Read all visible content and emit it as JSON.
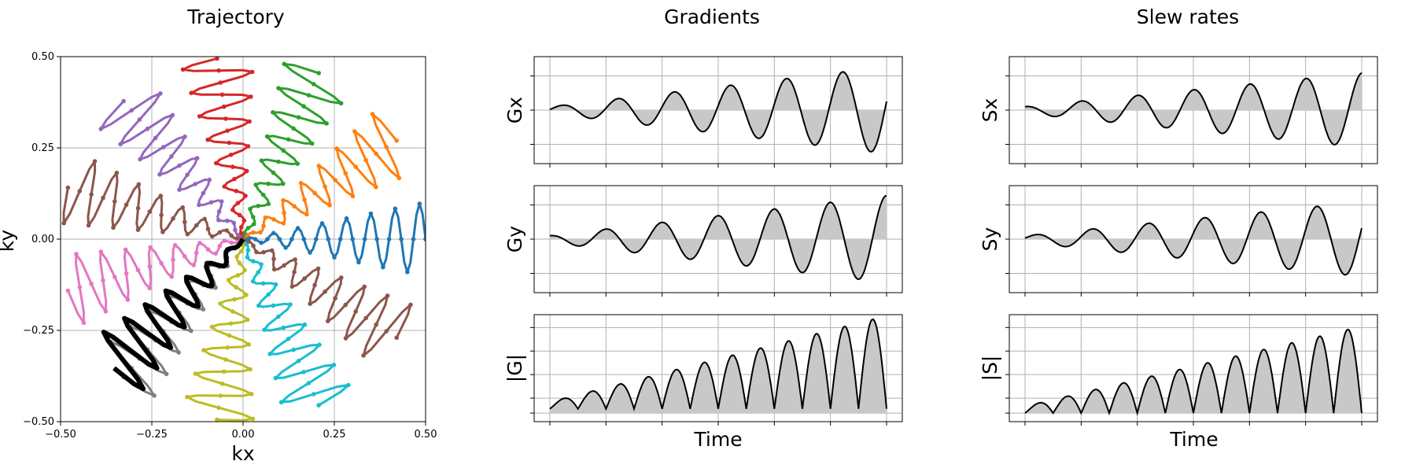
{
  "chart_data": [
    {
      "type": "line",
      "panel": "trajectory",
      "title": "Trajectory",
      "xlabel": "kx",
      "ylabel": "ky",
      "xlim": [
        -0.5,
        0.5
      ],
      "ylim": [
        -0.5,
        0.5
      ],
      "xticks": [
        "−0.50",
        "−0.25",
        "0.00",
        "0.25",
        "0.50"
      ],
      "yticks": [
        "−0.50",
        "−0.25",
        "0.00",
        "0.25",
        "0.50"
      ],
      "grid": true,
      "shot_model": {
        "shots": 11,
        "max_radius": 0.5,
        "oscillations": 7.5,
        "amplitude_ratio": 0.2,
        "points_per_shot": 60
      },
      "series": [
        {
          "color": "#000000",
          "angle_deg": 225,
          "style": "thick-line"
        },
        {
          "color": "#1f77b4",
          "angle_deg": 0
        },
        {
          "color": "#ff7f0e",
          "angle_deg": 32.7
        },
        {
          "color": "#2ca02c",
          "angle_deg": 65.5
        },
        {
          "color": "#d62728",
          "angle_deg": 98.2
        },
        {
          "color": "#9467bd",
          "angle_deg": 130.9
        },
        {
          "color": "#8c564b",
          "angle_deg": 163.6
        },
        {
          "color": "#e377c2",
          "angle_deg": 196.4
        },
        {
          "color": "#7f7f7f",
          "angle_deg": 229.1
        },
        {
          "color": "#bcbd22",
          "angle_deg": 261.8
        },
        {
          "color": "#17becf",
          "angle_deg": 294.5
        },
        {
          "color": "#8c564b",
          "angle_deg": 327.3
        }
      ]
    },
    {
      "type": "area",
      "panel": "gradients",
      "title": "Gradients",
      "xlabel": "Time",
      "grid": true,
      "series": [
        {
          "ylabel": "Gx",
          "cycles": 6,
          "growth": 1.3,
          "signed": true,
          "phase": 0.2
        },
        {
          "ylabel": "Gy",
          "cycles": 6,
          "growth": 1.3,
          "signed": true,
          "phase": 1.6
        },
        {
          "ylabel": "|G|",
          "cycles": 12,
          "growth": 1.4,
          "signed": false,
          "offset": 0.05
        }
      ]
    },
    {
      "type": "area",
      "panel": "slew_rates",
      "title": "Slew rates",
      "xlabel": "Time",
      "grid": true,
      "series": [
        {
          "ylabel": "Sx",
          "cycles": 6,
          "growth": 1.1,
          "signed": true,
          "phase": 1.5
        },
        {
          "ylabel": "Sy",
          "cycles": 6,
          "growth": 1.1,
          "signed": true,
          "phase": 0.3
        },
        {
          "ylabel": "|S|",
          "cycles": 12,
          "growth": 1.3,
          "signed": false,
          "offset": 0.0
        }
      ]
    }
  ]
}
